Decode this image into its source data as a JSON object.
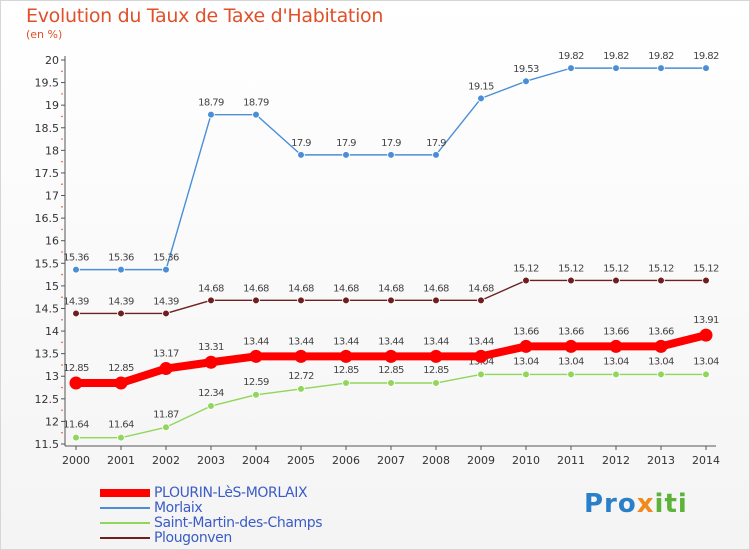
{
  "title": "Evolution du Taux de Taxe d'Habitation",
  "unit": "(en %)",
  "logo": {
    "part1": "Pro",
    "part2": "x",
    "part3": "iti",
    "text": "Proxiti"
  },
  "chart_data": {
    "type": "line",
    "x": [
      "2000",
      "2001",
      "2002",
      "2003",
      "2004",
      "2005",
      "2006",
      "2007",
      "2008",
      "2009",
      "2010",
      "2011",
      "2012",
      "2013",
      "2014"
    ],
    "ylim": [
      11.5,
      20
    ],
    "yticks": [
      "11.5",
      "12",
      "12.5",
      "13",
      "13.5",
      "14",
      "14.5",
      "15",
      "15.5",
      "16",
      "16.5",
      "17",
      "17.5",
      "18",
      "18.5",
      "19",
      "19.5",
      "20"
    ],
    "grid": false,
    "legend": "bottom-left",
    "series": [
      {
        "name": "Morlaix",
        "color": "#4a8fd6",
        "labels": [
          "15.36",
          "15.36",
          "15.36",
          "18.79",
          "18.79",
          "17.9",
          "17.9",
          "17.9",
          "17.9",
          "19.15",
          "19.53",
          "19.82",
          "19.82",
          "19.82",
          "19.82"
        ],
        "values": [
          15.36,
          15.36,
          15.36,
          18.79,
          18.79,
          17.9,
          17.9,
          17.9,
          17.9,
          19.15,
          19.53,
          19.82,
          19.82,
          19.82,
          19.82
        ]
      },
      {
        "name": "Plougonven",
        "color": "#6e1f1f",
        "labels": [
          "14.39",
          "14.39",
          "14.39",
          "14.68",
          "14.68",
          "14.68",
          "14.68",
          "14.68",
          "14.68",
          "14.68",
          "15.12",
          "15.12",
          "15.12",
          "15.12",
          "15.12"
        ],
        "values": [
          14.39,
          14.39,
          14.39,
          14.68,
          14.68,
          14.68,
          14.68,
          14.68,
          14.68,
          14.68,
          15.12,
          15.12,
          15.12,
          15.12,
          15.12
        ]
      },
      {
        "name": "Saint-Martin-des-Champs",
        "color": "#8fd65a",
        "labels": [
          "11.64",
          "11.64",
          "11.87",
          "12.34",
          "12.59",
          "12.72",
          "12.85",
          "12.85",
          "12.85",
          "13.04",
          "13.04",
          "13.04",
          "13.04",
          "13.04",
          "13.04"
        ],
        "values": [
          11.64,
          11.64,
          11.87,
          12.34,
          12.59,
          12.72,
          12.85,
          12.85,
          12.85,
          13.04,
          13.04,
          13.04,
          13.04,
          13.04,
          13.04
        ]
      },
      {
        "name": "PLOURIN-LèS-MORLAIX",
        "color": "#ff0000",
        "labels": [
          "12.85",
          "12.85",
          "13.17",
          "13.31",
          "13.44",
          "13.44",
          "13.44",
          "13.44",
          "13.44",
          "13.44",
          "13.66",
          "13.66",
          "13.66",
          "13.66",
          "13.91"
        ],
        "values": [
          12.85,
          12.85,
          13.17,
          13.31,
          13.44,
          13.44,
          13.44,
          13.44,
          13.44,
          13.44,
          13.66,
          13.66,
          13.66,
          13.66,
          13.91
        ]
      }
    ],
    "legend_order": [
      "PLOURIN-LèS-MORLAIX",
      "Morlaix",
      "Saint-Martin-des-Champs",
      "Plougonven"
    ]
  }
}
